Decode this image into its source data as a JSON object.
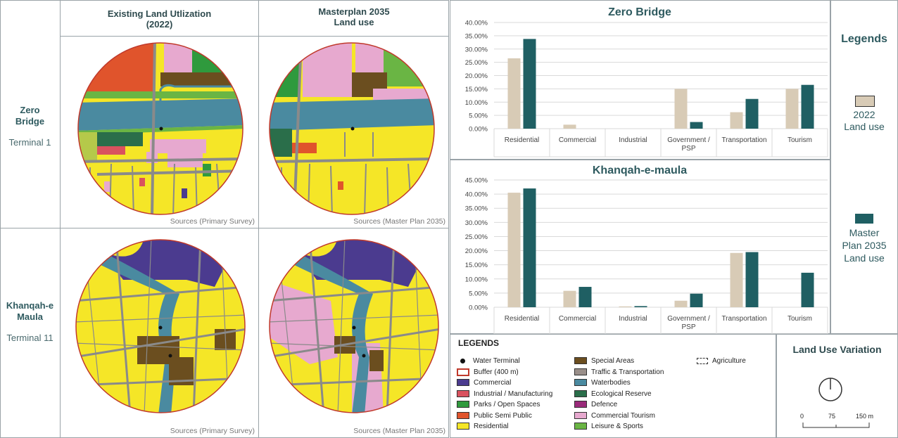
{
  "colors": {
    "residential": "#f5e627",
    "commercial": "#4b3b8f",
    "industrial": "#d9525e",
    "parks": "#2f9a3d",
    "public_semi_public": "#e0542c",
    "special": "#6b4e1f",
    "transport": "#8a8a8a",
    "water": "#4a8aa0",
    "ecological": "#2a6e4a",
    "defence": "#9a2a7a",
    "tourism": "#e7a9cf",
    "leisure": "#6ab544",
    "bar_2022": "#d8cbb6",
    "bar_2035": "#1f5f63"
  },
  "map_panel": {
    "rows": [
      {
        "name": "Zero\nBridge",
        "terminal": "Terminal 1"
      },
      {
        "name": "Khanqah-e\nMaula",
        "terminal": "Terminal 11"
      }
    ],
    "columns": [
      {
        "title": "Existing Land Utlization\n(2022)",
        "source": "Sources (Primary Survey)"
      },
      {
        "title": "Masterplan 2035\nLand use",
        "source": "Sources (Master Plan 2035)"
      }
    ]
  },
  "chart_data": [
    {
      "type": "bar",
      "title": "Zero Bridge",
      "categories": [
        "Residential",
        "Commercial",
        "Industrial",
        "Government /\nPSP",
        "Transportation",
        "Tourism"
      ],
      "series": [
        {
          "name": "2022 Land use",
          "values": [
            26.5,
            1.5,
            0,
            15,
            6.2,
            15
          ]
        },
        {
          "name": "Master Plan 2035 Land use",
          "values": [
            33.8,
            0,
            0,
            2.5,
            11.2,
            16.5
          ]
        }
      ],
      "ylim": [
        0,
        40
      ],
      "ytick_step": 5,
      "grid": true
    },
    {
      "type": "bar",
      "title": "Khanqah-e-maula",
      "categories": [
        "Residential",
        "Commercial",
        "Industrial",
        "Government /\nPSP",
        "Transportation",
        "Tourism"
      ],
      "series": [
        {
          "name": "2022 Land use",
          "values": [
            40.5,
            5.8,
            0.3,
            2.3,
            19.2,
            0
          ]
        },
        {
          "name": "Master Plan 2035 Land use",
          "values": [
            42,
            7.2,
            0.4,
            4.8,
            19.5,
            12.2
          ]
        }
      ],
      "ylim": [
        0,
        45
      ],
      "ytick_step": 5,
      "grid": true
    }
  ],
  "chart_legend": {
    "title": "Legends",
    "items": [
      {
        "label": "2022\nLand use",
        "color": "#d8cbb6"
      },
      {
        "label": "Master\nPlan 2035\nLand use",
        "color": "#1f5f63"
      }
    ]
  },
  "map_legend": {
    "title": "LEGENDS",
    "col1": [
      {
        "label": "Water Terminal",
        "kind": "dot",
        "color": "#111111"
      },
      {
        "label": "Buffer (400 m)",
        "kind": "ring",
        "color": "#c0392b"
      },
      {
        "label": "Commercial",
        "kind": "fill",
        "color": "#4b3b8f"
      },
      {
        "label": "Industrial / Manufacturing",
        "kind": "fill",
        "color": "#d9525e"
      },
      {
        "label": "Parks / Open Spaces",
        "kind": "fill",
        "color": "#2f9a3d"
      },
      {
        "label": "Public Semi Public",
        "kind": "fill",
        "color": "#e0542c"
      },
      {
        "label": "Residential",
        "kind": "fill",
        "color": "#f5e627"
      }
    ],
    "col2": [
      {
        "label": "Special Areas",
        "kind": "fill",
        "color": "#6b4e1f"
      },
      {
        "label": "Traffic & Transportation",
        "kind": "fill",
        "color": "#9a8f8a"
      },
      {
        "label": "Waterbodies",
        "kind": "fill",
        "color": "#4a8aa0"
      },
      {
        "label": "Ecological Reserve",
        "kind": "fill",
        "color": "#2a6e4a"
      },
      {
        "label": "Defence",
        "kind": "fill",
        "color": "#9a2a7a"
      },
      {
        "label": "Commercial Tourism",
        "kind": "fill",
        "color": "#e7a9cf"
      },
      {
        "label": "Leisure & Sports",
        "kind": "fill",
        "color": "#6ab544"
      }
    ],
    "col3": [
      {
        "label": "Agriculture",
        "kind": "dashed",
        "color": "#ffffff"
      }
    ]
  },
  "variation": {
    "title": "Land Use Variation",
    "scale": [
      "0",
      "75",
      "150 m"
    ]
  }
}
